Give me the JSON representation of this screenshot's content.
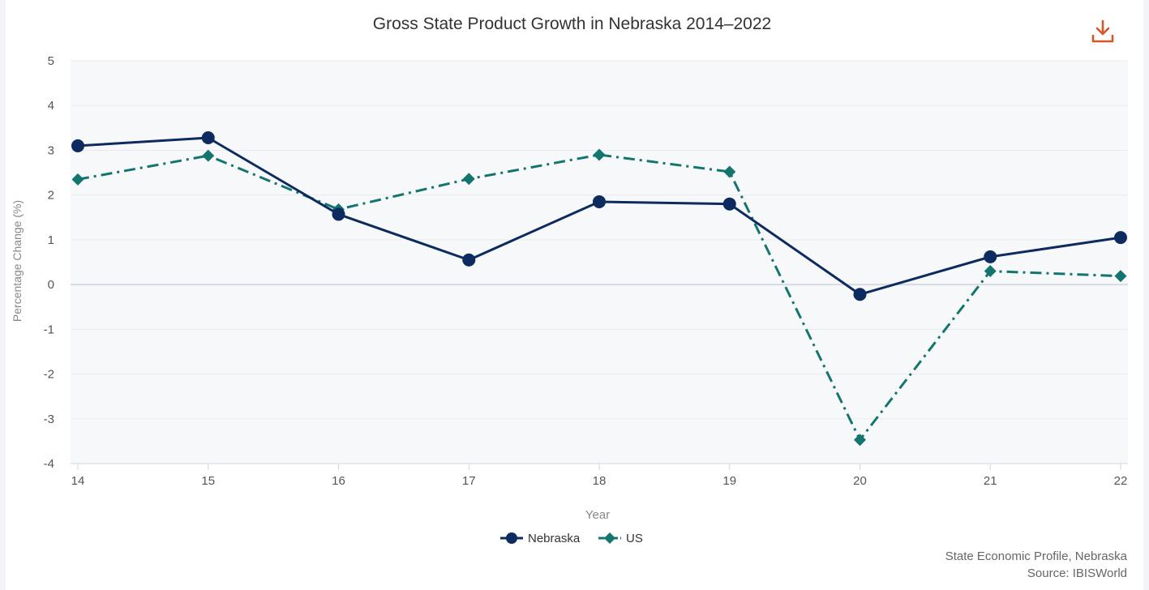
{
  "chart_data": {
    "type": "line",
    "title": "Gross State Product Growth in Nebraska 2014–2022",
    "xlabel": "Year",
    "ylabel": "Percentage Change (%)",
    "categories": [
      "14",
      "15",
      "16",
      "17",
      "18",
      "19",
      "20",
      "21",
      "22"
    ],
    "ylim": [
      -4,
      5
    ],
    "yticks": [
      "5",
      "4",
      "3",
      "2",
      "1",
      "0",
      "-1",
      "-2",
      "-3",
      "-4"
    ],
    "grid": true,
    "legend_position": "bottom",
    "series": [
      {
        "name": "Nebraska",
        "values": [
          3.1,
          3.28,
          1.57,
          0.55,
          1.85,
          1.8,
          -0.22,
          0.62,
          1.05
        ],
        "color": "#0d2b5e",
        "style": "solid",
        "marker": "circle"
      },
      {
        "name": "US",
        "values": [
          2.35,
          2.88,
          1.68,
          2.36,
          2.9,
          2.52,
          -3.47,
          0.3,
          0.19
        ],
        "color": "#14756e",
        "style": "dash-dot",
        "marker": "diamond"
      }
    ]
  },
  "source": {
    "line1": "State Economic Profile, Nebraska",
    "line2": "Source: IBISWorld"
  },
  "download_icon": "download-icon",
  "download_color": "#d4572a"
}
